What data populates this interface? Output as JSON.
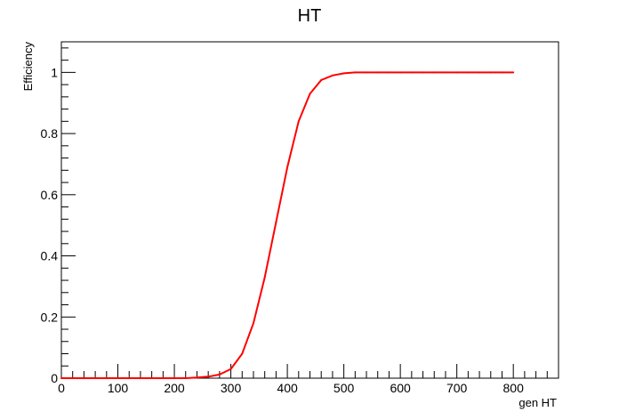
{
  "chart_data": {
    "type": "line",
    "title": "HT",
    "xlabel": "gen HT",
    "ylabel": "Efficiency",
    "xlim": [
      0,
      880
    ],
    "ylim": [
      0,
      1.1
    ],
    "x_ticks": [
      0,
      100,
      200,
      300,
      400,
      500,
      600,
      700,
      800
    ],
    "y_ticks": [
      0,
      0.2,
      0.4,
      0.6,
      0.8,
      1
    ],
    "x_tick_labels": [
      "0",
      "100",
      "200",
      "300",
      "400",
      "500",
      "600",
      "700",
      "800"
    ],
    "y_tick_labels": [
      "0",
      "0.2",
      "0.4",
      "0.6",
      "0.8",
      "1"
    ],
    "grid": false,
    "series": [
      {
        "color": "#ff0000",
        "x": [
          0,
          20,
          40,
          60,
          80,
          100,
          120,
          140,
          160,
          180,
          200,
          220,
          240,
          260,
          280,
          300,
          320,
          340,
          360,
          380,
          400,
          420,
          440,
          460,
          480,
          500,
          520,
          540,
          560,
          580,
          600,
          620,
          640,
          660,
          680,
          700,
          720,
          740,
          760,
          780,
          800
        ],
        "y": [
          0,
          0,
          0,
          0,
          0,
          0,
          0,
          0,
          0,
          0,
          0,
          0,
          0.002,
          0.005,
          0.012,
          0.03,
          0.08,
          0.18,
          0.33,
          0.51,
          0.69,
          0.84,
          0.93,
          0.975,
          0.99,
          0.997,
          1,
          1,
          1,
          1,
          1,
          1,
          1,
          1,
          1,
          1,
          1,
          1,
          1,
          1,
          1
        ]
      }
    ]
  }
}
